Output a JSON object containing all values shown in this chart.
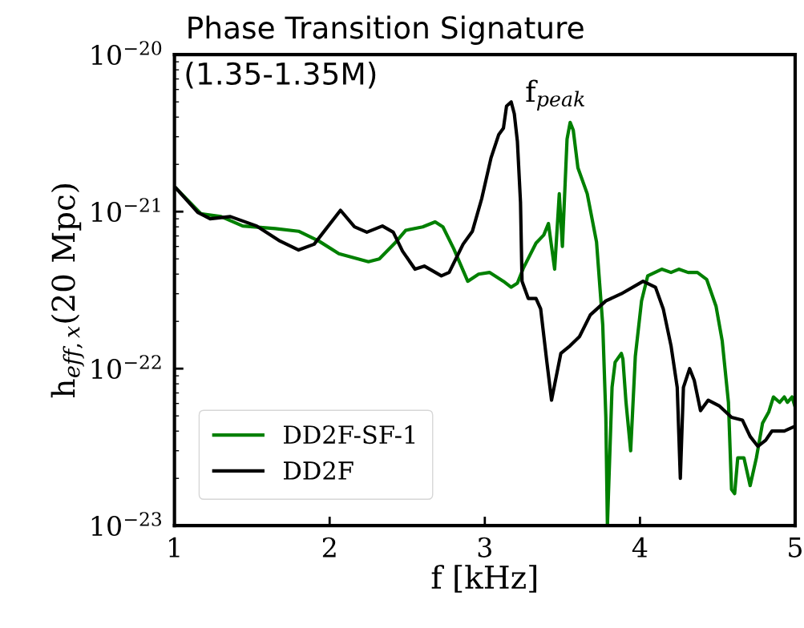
{
  "chart_data": {
    "type": "line",
    "title": "Phase Transition Signature",
    "subtitle": "(1.35-1.35M)",
    "xlabel": "f [kHz]",
    "ylabel": "h$_{eff,x}$(20 Mpc)",
    "log": "y",
    "xlim": [
      1,
      5
    ],
    "ylim": [
      1e-23,
      1e-20
    ],
    "xticks": [
      1,
      2,
      3,
      4,
      5
    ],
    "yticks": [
      {
        "value": 1e-23,
        "label": "10$^{−23}$"
      },
      {
        "value": 1e-22,
        "label": "10$^{−22}$"
      },
      {
        "value": 1e-21,
        "label": "10$^{−21}$"
      },
      {
        "value": 1e-20,
        "label": "10$^{−20}$"
      }
    ],
    "annotations": [
      "f$_{peak}$"
    ],
    "legend": "bottom left",
    "grid": false,
    "line_style": "solid",
    "marker": "none",
    "series": [
      {
        "name": "DD2F-SF-1",
        "color": "#008000",
        "x": [
          1.01,
          1.17,
          1.3,
          1.44,
          1.65,
          1.8,
          1.93,
          2.06,
          2.25,
          2.32,
          2.42,
          2.49,
          2.6,
          2.68,
          2.73,
          2.8,
          2.89,
          2.96,
          3.03,
          3.12,
          3.17,
          3.21,
          3.25,
          3.33,
          3.38,
          3.41,
          3.45,
          3.48,
          3.5,
          3.53,
          3.55,
          3.57,
          3.6,
          3.66,
          3.72,
          3.76,
          3.78,
          3.79,
          3.82,
          3.84,
          3.88,
          3.89,
          3.91,
          3.94,
          3.97,
          4.01,
          4.05,
          4.14,
          4.2,
          4.25,
          4.31,
          4.37,
          4.43,
          4.49,
          4.53,
          4.57,
          4.59,
          4.61,
          4.63,
          4.67,
          4.71,
          4.75,
          4.79,
          4.83,
          4.86,
          4.9,
          4.93,
          4.95,
          4.98,
          5.0
        ],
        "values": [
          1.41e-21,
          9.7e-22,
          9.3e-22,
          8.1e-22,
          7.8e-22,
          7.5e-22,
          6.5e-22,
          5.4e-22,
          4.8e-22,
          5e-22,
          6.3e-22,
          7.6e-22,
          8e-22,
          8.6e-22,
          8e-22,
          5.8e-22,
          3.6e-22,
          4e-22,
          4.1e-22,
          3.6e-22,
          3.3e-22,
          3.5e-22,
          4.4e-22,
          6.3e-22,
          7.1e-22,
          8.4e-22,
          4.3e-22,
          1.3e-21,
          6e-22,
          2.9e-21,
          3.7e-21,
          3.3e-21,
          1.9e-21,
          1.3e-21,
          6.4e-22,
          1.9e-22,
          4.9e-23,
          1e-23,
          7.6e-23,
          1.1e-22,
          1.25e-22,
          1.15e-22,
          6.1e-23,
          3e-23,
          1.2e-22,
          2.7e-22,
          3.9e-22,
          4.3e-22,
          4.1e-22,
          4.3e-22,
          4.1e-22,
          4.1e-22,
          3.7e-22,
          2.5e-22,
          1.5e-22,
          6.1e-23,
          1.7e-23,
          1.6e-23,
          2.7e-23,
          2.7e-23,
          1.8e-23,
          2.7e-23,
          4.5e-23,
          5.3e-23,
          6.6e-23,
          6.1e-23,
          6.6e-23,
          6.1e-23,
          6.6e-23,
          5.7e-23
        ]
      },
      {
        "name": "DD2F",
        "color": "#000000",
        "x": [
          1.01,
          1.15,
          1.23,
          1.36,
          1.53,
          1.68,
          1.8,
          1.9,
          2.07,
          2.16,
          2.24,
          2.34,
          2.41,
          2.47,
          2.55,
          2.61,
          2.72,
          2.77,
          2.86,
          2.92,
          2.98,
          3.04,
          3.09,
          3.12,
          3.14,
          3.17,
          3.19,
          3.21,
          3.23,
          3.24,
          3.28,
          3.33,
          3.36,
          3.4,
          3.43,
          3.49,
          3.55,
          3.61,
          3.68,
          3.78,
          3.88,
          4.02,
          4.1,
          4.15,
          4.2,
          4.24,
          4.26,
          4.28,
          4.32,
          4.35,
          4.39,
          4.44,
          4.51,
          4.59,
          4.66,
          4.71,
          4.76,
          4.81,
          4.85,
          4.93,
          5.0
        ],
        "values": [
          1.41e-21,
          9.9e-22,
          9e-22,
          9.3e-22,
          8.1e-22,
          6.5e-22,
          5.7e-22,
          6.2e-22,
          1.02e-21,
          8e-22,
          7.4e-22,
          8.1e-22,
          7.4e-22,
          5.6e-22,
          4.3e-22,
          4.5e-22,
          3.9e-22,
          4.1e-22,
          6.2e-22,
          7.5e-22,
          1.21e-21,
          2.2e-21,
          3.1e-21,
          3.4e-21,
          4.7e-21,
          5e-21,
          4.2e-21,
          2.8e-21,
          1.15e-21,
          3.6e-22,
          2.8e-22,
          2.8e-22,
          2.4e-22,
          1.1e-22,
          6.3e-23,
          1.25e-22,
          1.4e-22,
          1.6e-22,
          2.2e-22,
          2.7e-22,
          3e-22,
          3.6e-22,
          3.3e-22,
          2.4e-22,
          1.4e-22,
          7.6e-23,
          2e-23,
          7.6e-23,
          1e-22,
          8.4e-23,
          5.4e-23,
          6.3e-23,
          5.8e-23,
          4.9e-23,
          4.7e-23,
          3.7e-23,
          3.2e-23,
          3.5e-23,
          4e-23,
          4e-23,
          4.3e-23
        ]
      }
    ]
  }
}
